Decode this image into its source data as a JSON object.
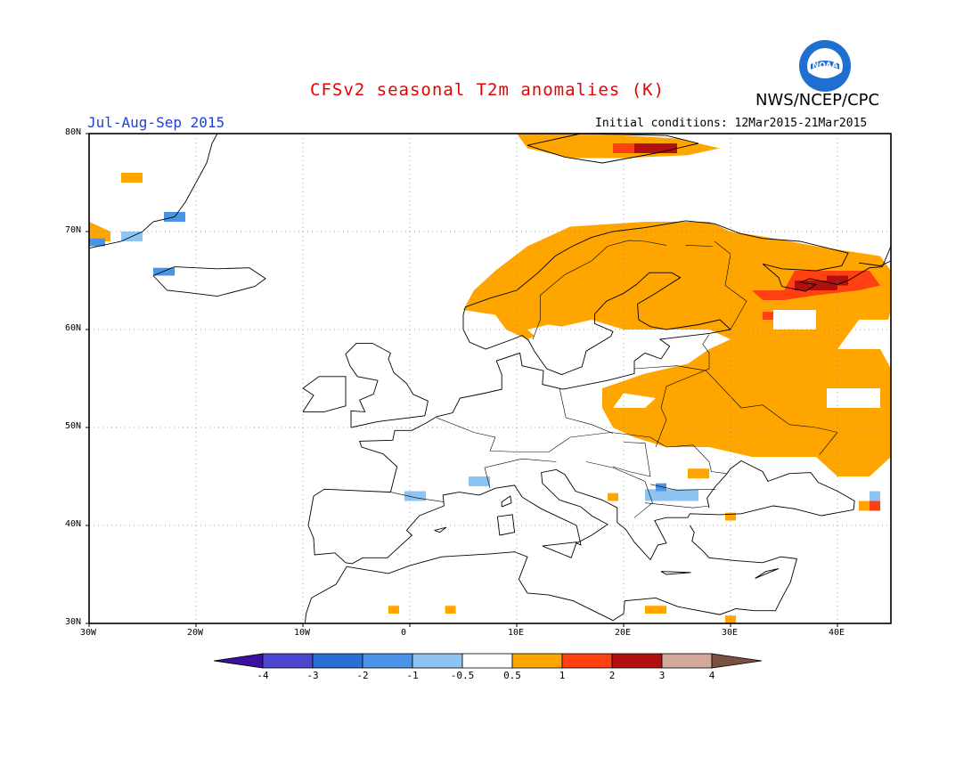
{
  "header": {
    "title": "CFSv2 seasonal T2m anomalies (K)",
    "season": "Jul-Aug-Sep 2015",
    "initial_conditions": "Initial conditions: 12Mar2015-21Mar2015",
    "agency": "NWS/NCEP/CPC",
    "logo_text": "NOAA"
  },
  "map": {
    "lon_range": [
      -30,
      45
    ],
    "lat_range": [
      30,
      80
    ],
    "y_ticks": [
      "30N",
      "40N",
      "50N",
      "60N",
      "70N",
      "80N"
    ],
    "x_ticks": [
      "30W",
      "20W",
      "10W",
      "0",
      "10E",
      "20E",
      "30E",
      "40E"
    ],
    "grid": "dotted",
    "region": "Europe"
  },
  "legend": {
    "labels": [
      "-4",
      "-3",
      "-2",
      "-1",
      "-0.5",
      "0.5",
      "1",
      "2",
      "3",
      "4"
    ],
    "colors": [
      "#3a10a0",
      "#4d47cf",
      "#2a6fd6",
      "#4a94e8",
      "#8ec4f2",
      "#ffffff",
      "#ffa500",
      "#ff4010",
      "#b01010",
      "#d4a89a",
      "#7a5040"
    ]
  },
  "colors": {
    "warm_1": "#ffa500",
    "warm_2": "#ff4010",
    "warm_3": "#b01010",
    "cool_1": "#8ec4f2",
    "cool_2": "#4a94e8",
    "title": "#e60000",
    "season": "#2040d8"
  }
}
